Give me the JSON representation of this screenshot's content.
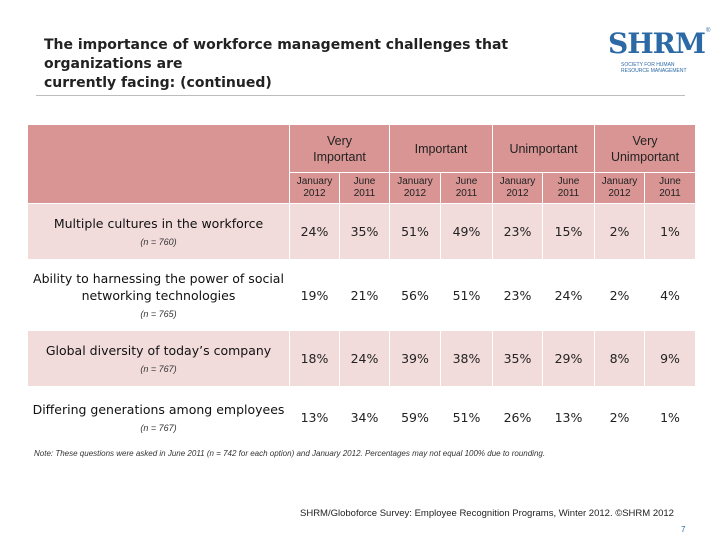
{
  "title": {
    "line1": "The importance of workforce management challenges that organizations are",
    "line2": "currently facing: (continued)"
  },
  "logo": {
    "text": "SHRM",
    "registered": "®",
    "sub_line1": "SOCIETY FOR HUMAN",
    "sub_line2": "RESOURCE MANAGEMENT",
    "color": "#2c6aa6"
  },
  "table": {
    "header_color": "#d99594",
    "stripe_color": "#f2dcdb",
    "groups": [
      {
        "line1": "Very",
        "line2": "Important"
      },
      {
        "line1": "Important",
        "line2": ""
      },
      {
        "line1": "Unimportant",
        "line2": ""
      },
      {
        "line1": "Very",
        "line2": "Unimportant"
      }
    ],
    "periods": [
      {
        "month": "January",
        "year": "2012"
      },
      {
        "month": "June",
        "year": "2011"
      },
      {
        "month": "January",
        "year": "2012"
      },
      {
        "month": "June",
        "year": "2011"
      },
      {
        "month": "January",
        "year": "2012"
      },
      {
        "month": "June",
        "year": "2011"
      },
      {
        "month": "January",
        "year": "2012"
      },
      {
        "month": "June",
        "year": "2011"
      }
    ],
    "rows": [
      {
        "label": "Multiple cultures in the workforce",
        "n": "(n = 760)",
        "values": [
          "24%",
          "35%",
          "51%",
          "49%",
          "23%",
          "15%",
          "2%",
          "1%"
        ]
      },
      {
        "label": "Ability to harnessing the power of social networking technologies",
        "n": "(n = 765)",
        "values": [
          "19%",
          "21%",
          "56%",
          "51%",
          "23%",
          "24%",
          "2%",
          "4%"
        ]
      },
      {
        "label": "Global diversity of today’s company",
        "n": "(n = 767)",
        "values": [
          "18%",
          "24%",
          "39%",
          "38%",
          "35%",
          "29%",
          "8%",
          "9%"
        ]
      },
      {
        "label": "Differing generations among employees",
        "n": "(n = 767)",
        "values": [
          "13%",
          "34%",
          "59%",
          "51%",
          "26%",
          "13%",
          "2%",
          "1%"
        ]
      }
    ]
  },
  "note": "Note: These questions were asked in June 2011 (n = 742 for each option) and January 2012. Percentages may not equal 100% due to rounding.",
  "source": "SHRM/Globoforce Survey: Employee Recognition Programs, Winter 2012. ©SHRM 2012",
  "page_number": "7"
}
